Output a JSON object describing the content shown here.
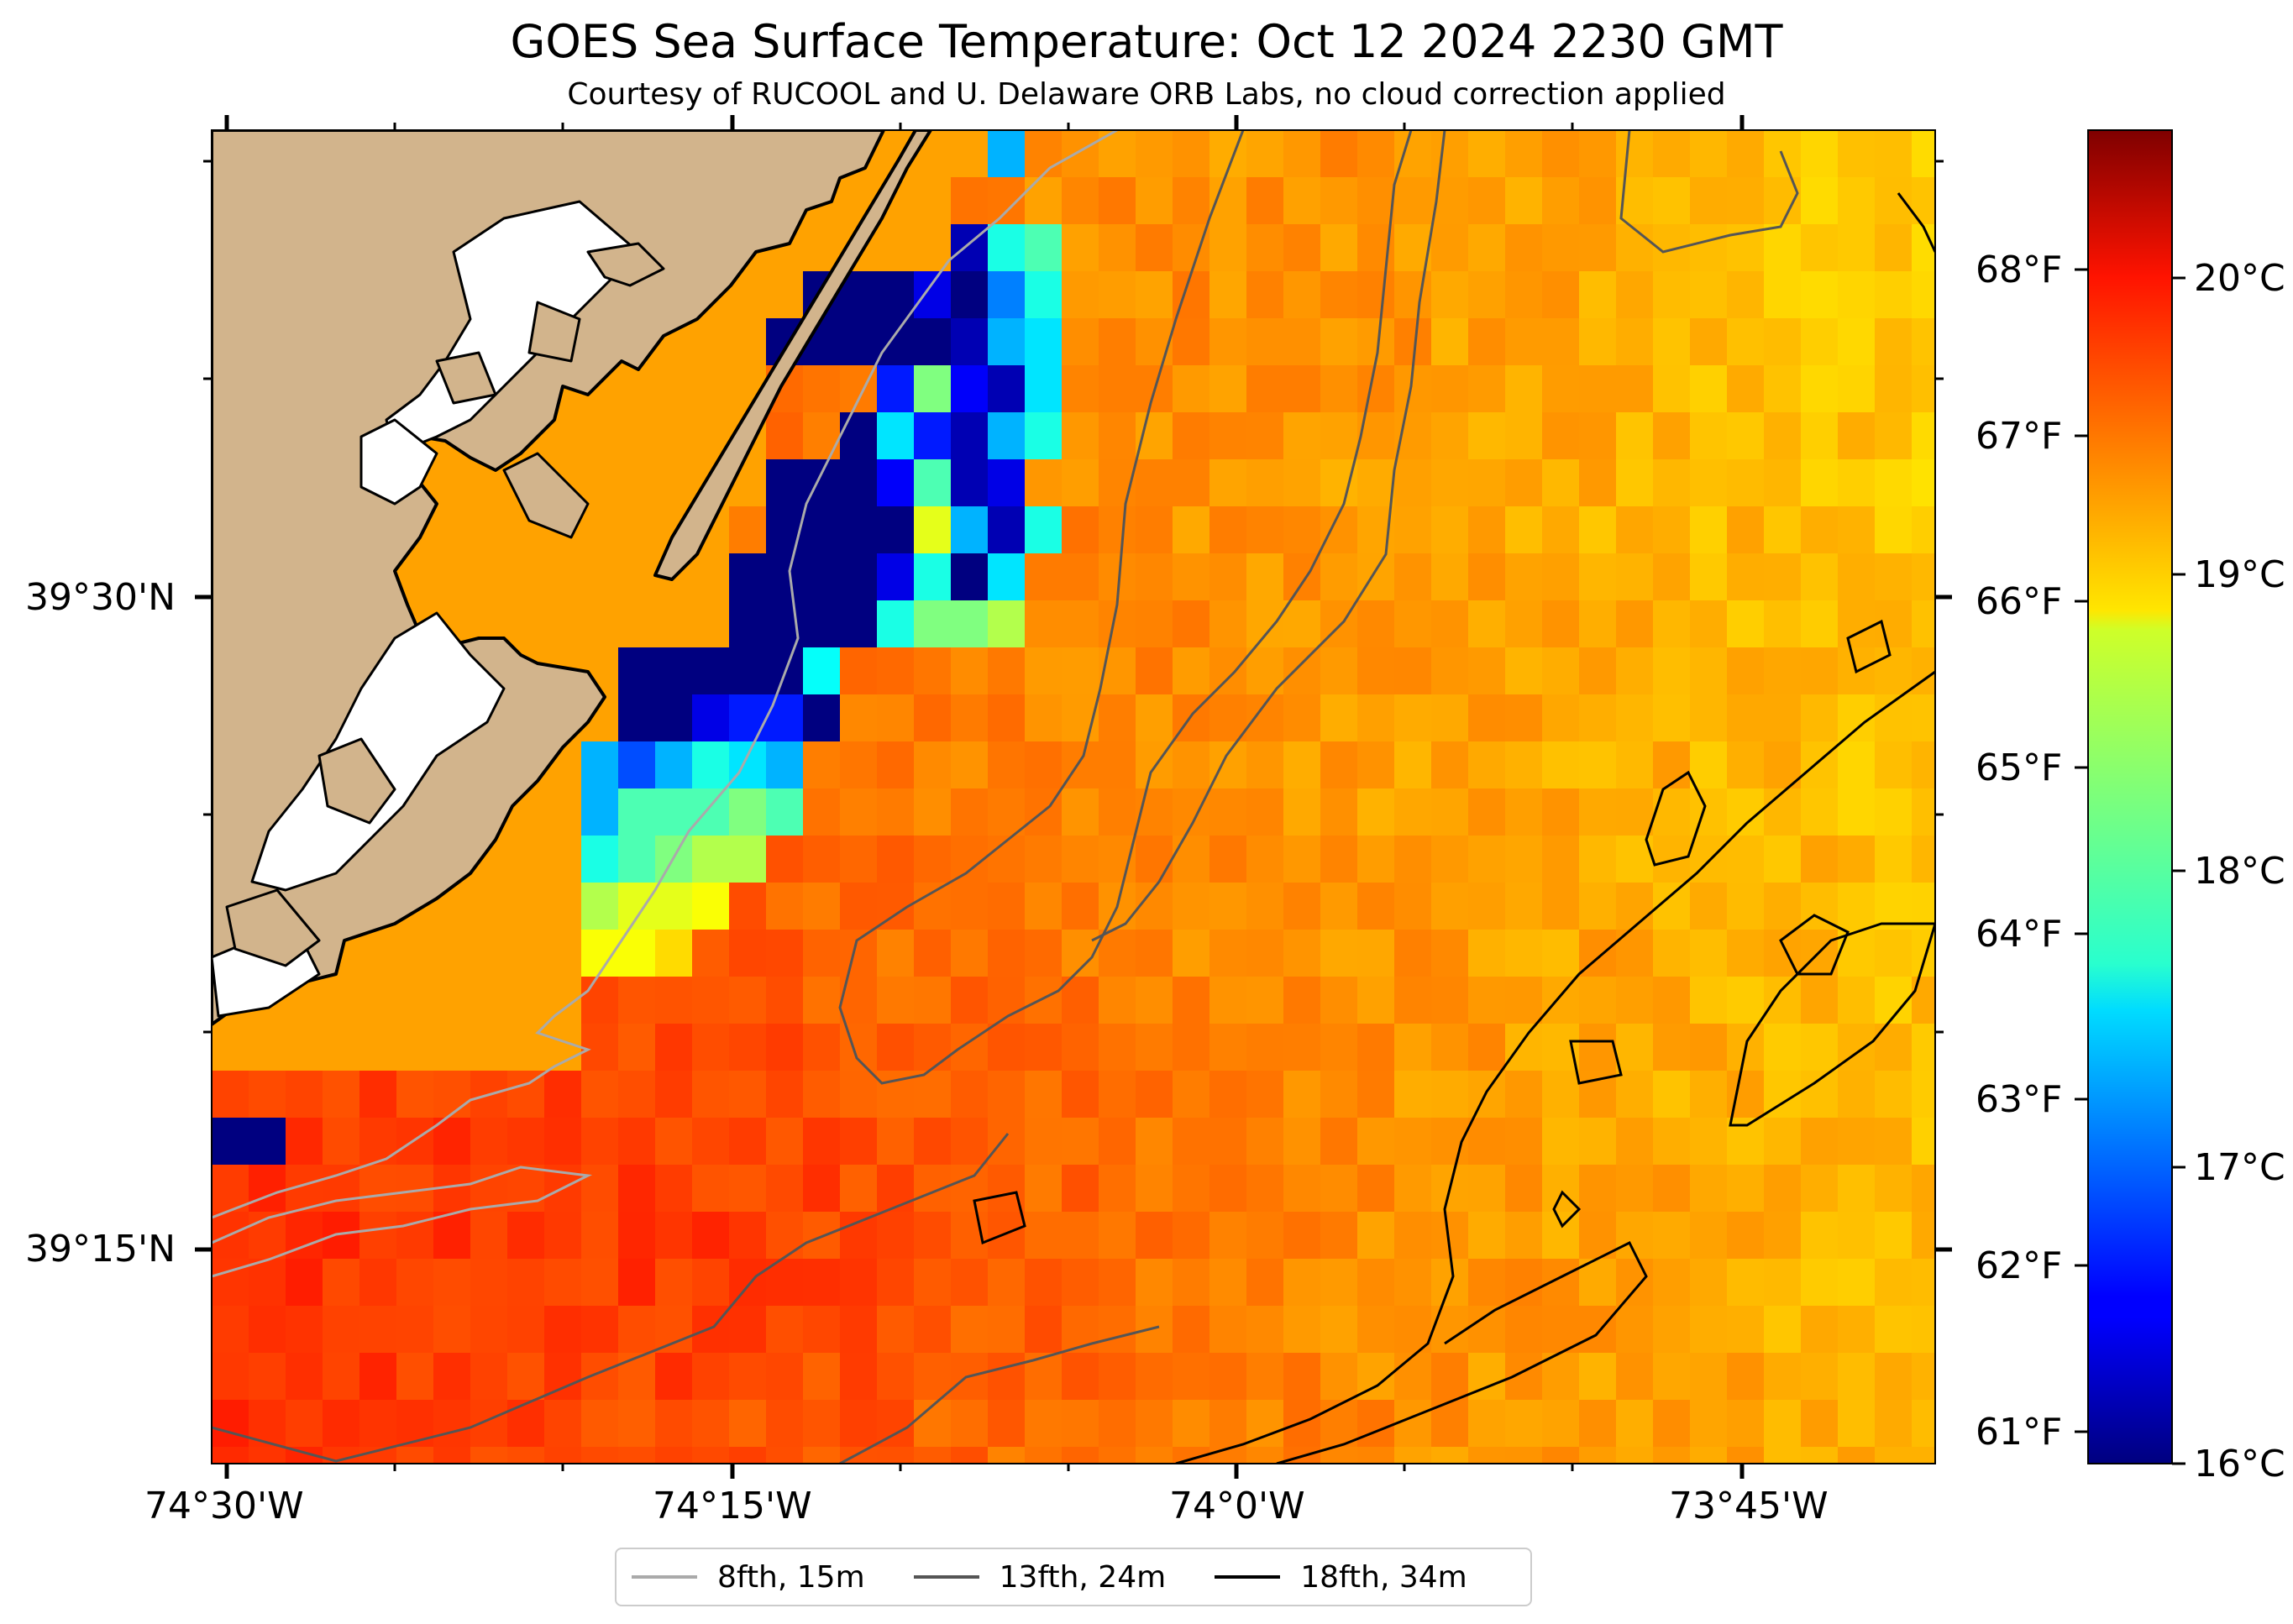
{
  "title": "GOES Sea Surface Temperature: Oct 12 2024 2230 GMT",
  "subtitle": "Courtesy of RUCOOL and U. Delaware ORB Labs, no cloud correction applied",
  "map": {
    "lon_labels": [
      "74°30'W",
      "74°15'W",
      "74°0'W",
      "73°45'W"
    ],
    "lat_labels": [
      "39°30'N",
      "39°15'N"
    ],
    "land_color": "#d2b48c",
    "no_data_color": "#ffffff"
  },
  "colorbar": {
    "colormap": "jet",
    "range_c": [
      16,
      20.5
    ],
    "celsius_ticks": [
      "16°C",
      "17°C",
      "18°C",
      "19°C",
      "20°C"
    ],
    "fahrenheit_ticks": [
      "61°F",
      "62°F",
      "63°F",
      "64°F",
      "65°F",
      "66°F",
      "67°F",
      "68°F"
    ]
  },
  "legend": {
    "items": [
      {
        "label": "8fth, 15m",
        "color": "#aaaaaa"
      },
      {
        "label": "13fth, 24m",
        "color": "#555555"
      },
      {
        "label": "18fth, 34m",
        "color": "#000000"
      }
    ]
  }
}
